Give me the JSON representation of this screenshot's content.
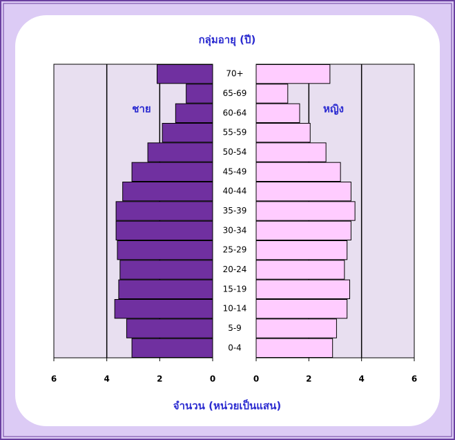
{
  "chart_data": {
    "type": "pyramid",
    "title": "กลุ่มอายุ (ปี)",
    "x_label": "จำนวน (หน่วยเป็นแสน)",
    "categories": [
      "70+",
      "65-69",
      "60-64",
      "55-59",
      "50-54",
      "45-49",
      "40-44",
      "35-39",
      "30-34",
      "25-29",
      "20-24",
      "15-19",
      "10-14",
      "5-9",
      "0-4"
    ],
    "series": [
      {
        "name": "ชาย",
        "color": "#7030a0",
        "values": [
          2.1,
          1.0,
          1.4,
          1.9,
          2.45,
          3.05,
          3.4,
          3.65,
          3.65,
          3.6,
          3.5,
          3.55,
          3.7,
          3.25,
          3.05
        ]
      },
      {
        "name": "หญิง",
        "color": "#ffccff",
        "values": [
          2.8,
          1.2,
          1.65,
          2.05,
          2.65,
          3.2,
          3.6,
          3.75,
          3.6,
          3.45,
          3.35,
          3.55,
          3.45,
          3.05,
          2.9
        ]
      }
    ],
    "xlim": [
      0,
      6
    ],
    "xticks": [
      0,
      2,
      4,
      6
    ],
    "grid": true
  }
}
